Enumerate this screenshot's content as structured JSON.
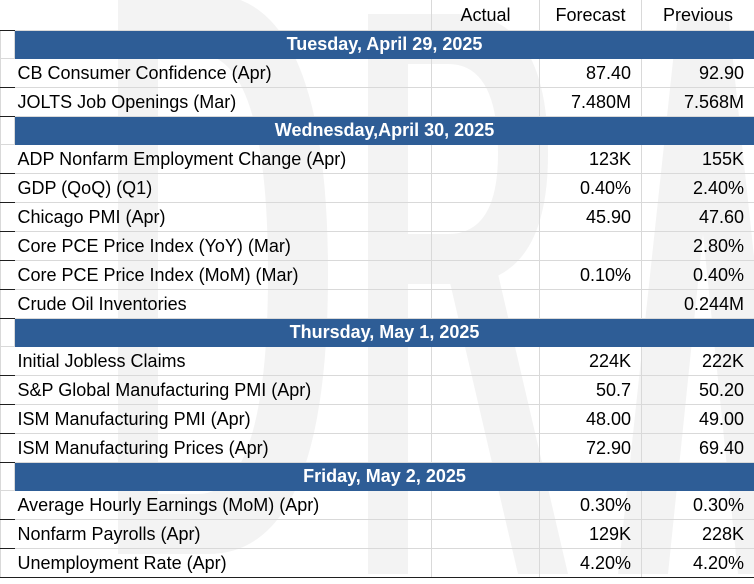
{
  "header": {
    "blank": "",
    "actual": "Actual",
    "forecast": "Forecast",
    "previous": "Previous"
  },
  "days": [
    {
      "title": "Tuesday, April 29, 2025",
      "rows": [
        {
          "name": "CB Consumer Confidence (Apr)",
          "actual": "",
          "forecast": "87.40",
          "previous": "92.90"
        },
        {
          "name": "JOLTS Job Openings (Mar)",
          "actual": "",
          "forecast": "7.480M",
          "previous": "7.568M"
        }
      ]
    },
    {
      "title": "Wednesday,April 30, 2025",
      "rows": [
        {
          "name": "ADP Nonfarm Employment Change (Apr)",
          "actual": "",
          "forecast": "123K",
          "previous": "155K"
        },
        {
          "name": "GDP (QoQ) (Q1)",
          "actual": "",
          "forecast": "0.40%",
          "previous": "2.40%"
        },
        {
          "name": "Chicago PMI (Apr)",
          "actual": "",
          "forecast": "45.90",
          "previous": "47.60"
        },
        {
          "name": "Core PCE Price Index (YoY) (Mar)",
          "actual": "",
          "forecast": "",
          "previous": "2.80%"
        },
        {
          "name": "Core PCE Price Index (MoM) (Mar)",
          "actual": "",
          "forecast": "0.10%",
          "previous": "0.40%"
        },
        {
          "name": "Crude Oil Inventories",
          "actual": "",
          "forecast": "",
          "previous": "0.244M"
        }
      ]
    },
    {
      "title": "Thursday, May 1, 2025",
      "rows": [
        {
          "name": "Initial Jobless Claims",
          "actual": "",
          "forecast": "224K",
          "previous": "222K"
        },
        {
          "name": "S&P Global Manufacturing PMI (Apr)",
          "actual": "",
          "forecast": "50.7",
          "previous": "50.20"
        },
        {
          "name": "ISM Manufacturing PMI (Apr)",
          "actual": "",
          "forecast": "48.00",
          "previous": "49.00"
        },
        {
          "name": "ISM Manufacturing Prices (Apr)",
          "actual": "",
          "forecast": "72.90",
          "previous": "69.40"
        }
      ]
    },
    {
      "title": "Friday, May 2, 2025",
      "rows": [
        {
          "name": "Average Hourly Earnings (MoM) (Apr)",
          "actual": "",
          "forecast": "0.30%",
          "previous": "0.30%"
        },
        {
          "name": "Nonfarm Payrolls (Apr)",
          "actual": "",
          "forecast": "129K",
          "previous": "228K"
        },
        {
          "name": "Unemployment Rate (Apr)",
          "actual": "",
          "forecast": "4.20%",
          "previous": "4.20%"
        }
      ]
    }
  ]
}
